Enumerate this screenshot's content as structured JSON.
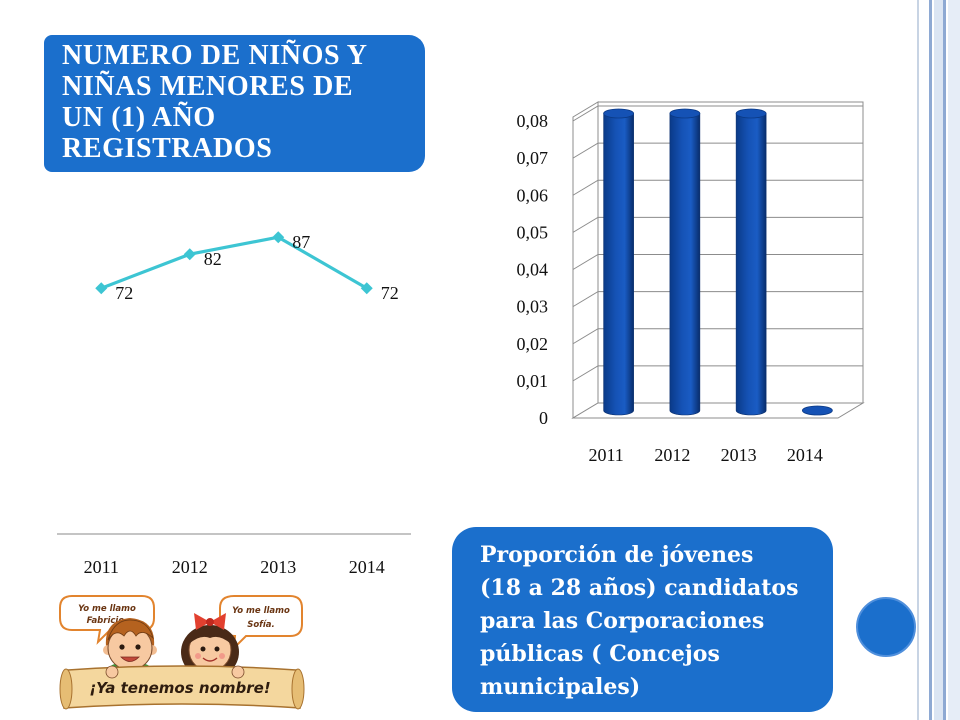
{
  "slide": {
    "title_box": {
      "lines": [
        "NUMERO DE NIÑOS Y",
        "NIÑAS MENORES DE",
        "UN (1) AÑO",
        "REGISTRADOS"
      ]
    },
    "caption_box": {
      "lines": [
        "Proporción de jóvenes",
        "(18 a 28 años) candidatos",
        "para las Corporaciones",
        "públicas ( Concejos",
        "municipales)"
      ]
    },
    "illustration": {
      "bubble_left": [
        "Yo me llamo",
        "Fabricio."
      ],
      "bubble_right": [
        "Yo me llamo",
        "Sofía."
      ],
      "banner": "¡Ya tenemos nombre!"
    },
    "colors": {
      "box": "#1b6fcc",
      "line_series": "#3dc5d3",
      "bars": "#1552b5"
    }
  },
  "chart_data": [
    {
      "type": "line",
      "categories": [
        "2011",
        "2012",
        "2013",
        "2014"
      ],
      "values": [
        72,
        82,
        87,
        72
      ],
      "data_labels": true,
      "ylim": [
        0,
        100
      ],
      "grid": false
    },
    {
      "type": "bar",
      "categories": [
        "2011",
        "2012",
        "2013",
        "2014"
      ],
      "values": [
        0.08,
        0.08,
        0.08,
        0
      ],
      "ylim": [
        0,
        0.08
      ],
      "yticks": [
        0,
        0.01,
        0.02,
        0.03,
        0.04,
        0.05,
        0.06,
        0.07,
        0.08
      ],
      "ytick_labels": [
        "0",
        "0,01",
        "0,02",
        "0,03",
        "0,04",
        "0,05",
        "0,06",
        "0,07",
        "0,08"
      ],
      "grid": true
    }
  ]
}
